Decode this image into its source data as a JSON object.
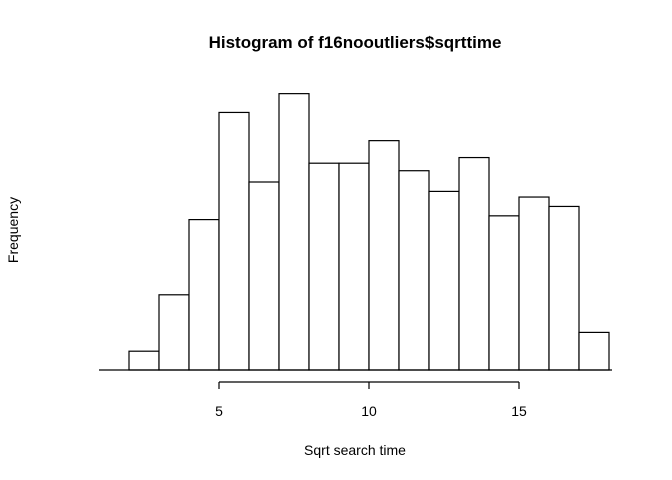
{
  "chart_data": {
    "type": "bar",
    "title": "Histogram of f16nooutliers$sqrttime",
    "xlabel": "Sqrt search time",
    "ylabel": "Frequency",
    "bin_edges": [
      2,
      3,
      4,
      5,
      6,
      7,
      8,
      9,
      10,
      11,
      12,
      13,
      14,
      15,
      16,
      17,
      18
    ],
    "values": [
      1,
      4,
      8,
      13.7,
      10,
      14.7,
      11,
      11,
      12.2,
      10.6,
      9.5,
      11.3,
      8.2,
      9.2,
      8.7,
      2
    ],
    "xlim": [
      1,
      18
    ],
    "ylim": [
      0,
      15
    ],
    "x_ticks": [
      5,
      10,
      15
    ],
    "x_tick_labels": [
      "5",
      "10",
      "15"
    ],
    "y_axis_drawn": false,
    "bar_fill": "#ffffff",
    "bar_stroke": "#000000"
  }
}
